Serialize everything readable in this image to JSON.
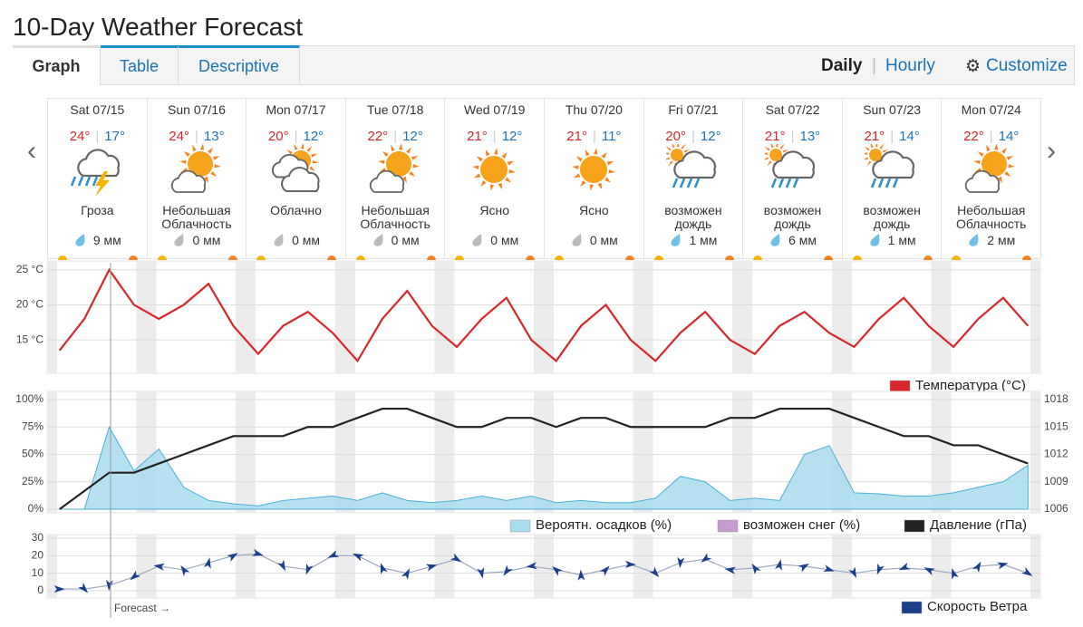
{
  "header": {
    "title": "10-Day Weather Forecast"
  },
  "tabs": [
    "Graph",
    "Table",
    "Descriptive"
  ],
  "views": [
    "Daily",
    "Hourly"
  ],
  "customize": "Customize",
  "days": [
    {
      "date": "Sat 07/15",
      "high": "24°",
      "low": "17°",
      "condition": "Гроза",
      "precip": "9 мм"
    },
    {
      "date": "Sun 07/16",
      "high": "24°",
      "low": "13°",
      "condition": "Небольшая Облачность",
      "precip": "0 мм"
    },
    {
      "date": "Mon 07/17",
      "high": "20°",
      "low": "12°",
      "condition": "Облачно",
      "precip": "0 мм"
    },
    {
      "date": "Tue 07/18",
      "high": "22°",
      "low": "12°",
      "condition": "Небольшая Облачность",
      "precip": "0 мм"
    },
    {
      "date": "Wed 07/19",
      "high": "21°",
      "low": "12°",
      "condition": "Ясно",
      "precip": "0 мм"
    },
    {
      "date": "Thu 07/20",
      "high": "21°",
      "low": "11°",
      "condition": "Ясно",
      "precip": "0 мм"
    },
    {
      "date": "Fri 07/21",
      "high": "20°",
      "low": "12°",
      "condition": "возможен дождь",
      "precip": "1 мм"
    },
    {
      "date": "Sat 07/22",
      "high": "21°",
      "low": "13°",
      "condition": "возможен дождь",
      "precip": "6 мм"
    },
    {
      "date": "Sun 07/23",
      "high": "21°",
      "low": "14°",
      "condition": "возможен дождь",
      "precip": "1 мм"
    },
    {
      "date": "Mon 07/24",
      "high": "22°",
      "low": "14°",
      "condition": "Небольшая Облачность",
      "precip": "2 мм"
    }
  ],
  "chart_data": [
    {
      "type": "line",
      "series": [
        {
          "name": "Температура (°C)",
          "color": "#d9262b",
          "values": [
            13.5,
            18,
            25,
            20,
            18,
            20,
            23,
            17,
            13,
            17,
            19,
            16,
            12,
            18,
            22,
            17,
            14,
            18,
            21,
            15,
            12,
            17,
            20,
            15,
            12,
            16,
            19,
            15,
            13,
            17,
            19,
            16,
            14,
            18,
            21,
            17,
            14,
            18,
            21,
            17
          ]
        }
      ],
      "ylim": [
        10.5,
        26
      ],
      "yticks": [
        {
          "value": 15,
          "label": "15 °C"
        },
        {
          "value": 20,
          "label": "20 °C"
        },
        {
          "value": 25,
          "label": "25 °C"
        }
      ],
      "grid": true
    },
    {
      "type": "area",
      "series": [
        {
          "name": "Вероятн. осадков (%)",
          "color": "#a8dcef",
          "type": "area",
          "values": [
            0,
            0,
            75,
            35,
            55,
            20,
            8,
            5,
            3,
            8,
            10,
            12,
            8,
            15,
            8,
            6,
            8,
            12,
            8,
            12,
            6,
            8,
            6,
            6,
            10,
            30,
            25,
            8,
            10,
            8,
            50,
            58,
            15,
            14,
            12,
            12,
            15,
            20,
            25,
            40
          ]
        },
        {
          "name": "возможен снег (%)",
          "color": "#c89bd0",
          "type": "area",
          "values": [
            0,
            0,
            0,
            0,
            0,
            0,
            0,
            0,
            0,
            0,
            0,
            0,
            0,
            0,
            0,
            0,
            0,
            0,
            0,
            0,
            0,
            0,
            0,
            0,
            0,
            0,
            0,
            0,
            0,
            0,
            0,
            0,
            0,
            0,
            0,
            0,
            0,
            0,
            0,
            0
          ]
        },
        {
          "name": "Давление (гПа)",
          "color": "#222222",
          "type": "line",
          "axis": "y2",
          "values": [
            1006,
            1008,
            1010,
            1010,
            1011,
            1012,
            1013,
            1014,
            1014,
            1014,
            1015,
            1015,
            1016,
            1017,
            1017,
            1016,
            1015,
            1015,
            1016,
            1016,
            1015,
            1016,
            1016,
            1015,
            1015,
            1015,
            1015,
            1016,
            1016,
            1017,
            1017,
            1017,
            1016,
            1015,
            1014,
            1014,
            1013,
            1013,
            1012,
            1011
          ]
        }
      ],
      "ylim": [
        0,
        100
      ],
      "yticks": [
        {
          "value": 0,
          "label": "0%"
        },
        {
          "value": 25,
          "label": "25%"
        },
        {
          "value": 50,
          "label": "50%"
        },
        {
          "value": 75,
          "label": "75%"
        },
        {
          "value": 100,
          "label": "100%"
        }
      ],
      "y2lim": [
        1006,
        1018
      ],
      "y2ticks": [
        1006,
        1009,
        1012,
        1015,
        1018
      ],
      "grid": true
    },
    {
      "type": "line",
      "series": [
        {
          "name": "Скорость Ветра",
          "color": "#1b3f8b",
          "values": [
            1,
            1,
            3,
            8,
            14,
            12,
            16,
            20,
            21,
            14,
            12,
            20,
            20,
            13,
            10,
            14,
            18,
            10,
            11,
            14,
            12,
            9,
            12,
            15,
            10,
            16,
            18,
            12,
            13,
            15,
            14,
            12,
            10,
            12,
            13,
            12,
            10,
            14,
            15,
            10
          ]
        }
      ],
      "ylim": [
        0,
        30
      ],
      "yticks": [
        0,
        10,
        20,
        30
      ],
      "annotation": "Forecast →",
      "grid": true
    }
  ]
}
